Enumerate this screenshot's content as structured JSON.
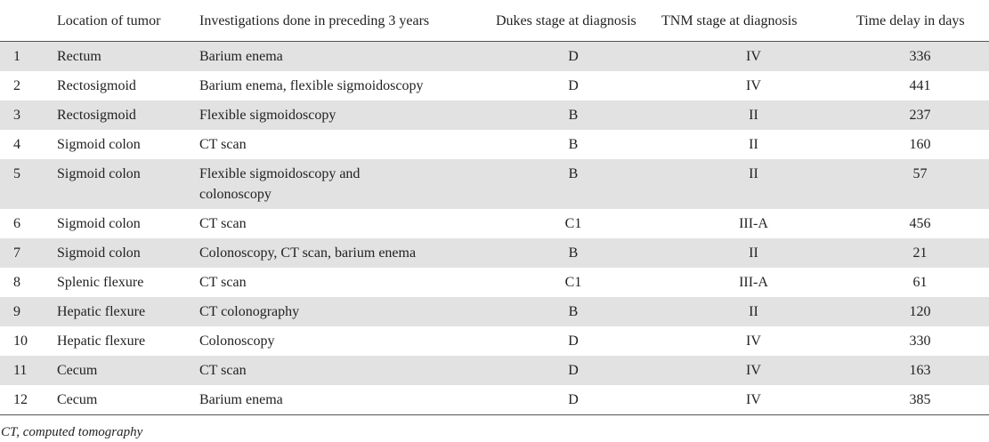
{
  "table": {
    "header": [
      "",
      "Location of tumor",
      "Investigations done in preceding 3 years",
      "Dukes stage at diagnosis",
      "TNM stage at diagnosis",
      "Time delay in days"
    ],
    "rows": [
      [
        1,
        "Rectum",
        "Barium enema",
        "D",
        "IV",
        336
      ],
      [
        2,
        "Rectosigmoid",
        "Barium enema, flexible sigmoidoscopy",
        "D",
        "IV",
        441
      ],
      [
        3,
        "Rectosigmoid",
        "Flexible sigmoidoscopy",
        "B",
        "II",
        237
      ],
      [
        4,
        "Sigmoid colon",
        "CT scan",
        "B",
        "II",
        160
      ],
      [
        5,
        "Sigmoid colon",
        "Flexible sigmoidoscopy and colonoscopy",
        "B",
        "II",
        57
      ],
      [
        6,
        "Sigmoid colon",
        "CT scan",
        "C1",
        "III-A",
        456
      ],
      [
        7,
        "Sigmoid colon",
        "Colonoscopy, CT scan, barium enema",
        "B",
        "II",
        21
      ],
      [
        8,
        "Splenic flexure",
        "CT scan",
        "C1",
        "III-A",
        61
      ],
      [
        9,
        "Hepatic flexure",
        "CT colonography",
        "B",
        "II",
        120
      ],
      [
        10,
        "Hepatic flexure",
        "Colonoscopy",
        "D",
        "IV",
        330
      ],
      [
        11,
        "Cecum",
        "CT scan",
        "D",
        "IV",
        163
      ],
      [
        12,
        "Cecum",
        "Barium enema",
        "D",
        "IV",
        385
      ]
    ],
    "footnote": "CT, computed tomography"
  }
}
